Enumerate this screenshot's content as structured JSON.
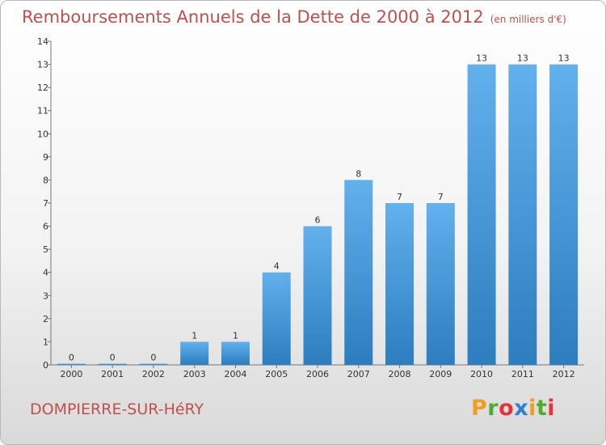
{
  "title": "Remboursements Annuels de la Dette de 2000 à 2012",
  "unit_note": "(en milliers d'€)",
  "commune": "DOMPIERRE-SUR-HéRY",
  "logo": {
    "letters": [
      "P",
      "r",
      "o",
      "x",
      "i",
      "t",
      "i"
    ],
    "colors": [
      "#f29d1f",
      "#4cad2f",
      "#e8323a",
      "#2f7ed8",
      "#f29d1f",
      "#4cad2f",
      "#e8323a"
    ]
  },
  "colors": {
    "bar_top": "#62b0ec",
    "bar_bottom": "#2d7dbf",
    "title": "#c0504d"
  },
  "chart_data": {
    "type": "bar",
    "title": "Remboursements Annuels de la Dette de 2000 à 2012",
    "xlabel": "",
    "ylabel": "",
    "categories": [
      "2000",
      "2001",
      "2002",
      "2003",
      "2004",
      "2005",
      "2006",
      "2007",
      "2008",
      "2009",
      "2010",
      "2011",
      "2012"
    ],
    "values": [
      0,
      0,
      0,
      1,
      1,
      4,
      6,
      8,
      7,
      7,
      13,
      13,
      13
    ],
    "value_labels": [
      "0",
      "0",
      "0",
      "1",
      "1",
      "4",
      "6",
      "8",
      "7",
      "7",
      "13",
      "13",
      "13"
    ],
    "ylim": [
      0,
      14
    ],
    "yticks": [
      "0",
      "1",
      "2",
      "3",
      "4",
      "5",
      "6",
      "7",
      "8",
      "9",
      "10",
      "11",
      "12",
      "13",
      "14"
    ],
    "grid": false,
    "legend": "none"
  }
}
